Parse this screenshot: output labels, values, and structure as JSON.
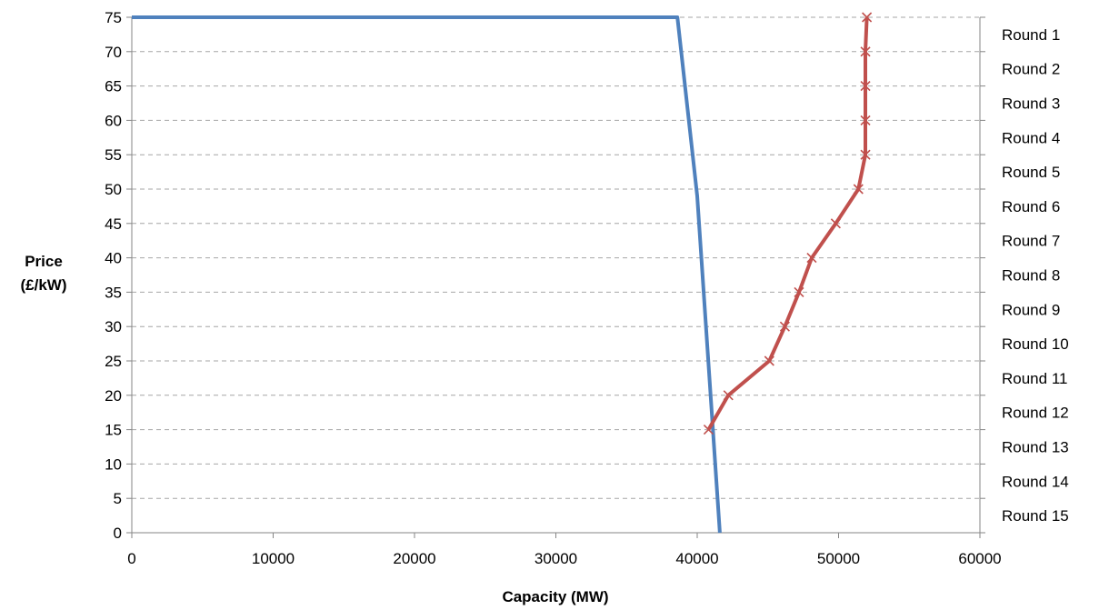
{
  "chart_data": {
    "type": "line",
    "title": "",
    "xlabel": "Capacity (MW)",
    "ylabel_lines": [
      "Price",
      "(£/kW)"
    ],
    "xlim": [
      0,
      60000
    ],
    "ylim": [
      0,
      75
    ],
    "x_ticks": [
      0,
      10000,
      20000,
      30000,
      40000,
      50000,
      60000
    ],
    "y_ticks": [
      0,
      5,
      10,
      15,
      20,
      25,
      30,
      35,
      40,
      45,
      50,
      55,
      60,
      65,
      70,
      75
    ],
    "grid": "horizontal dashed",
    "legend": "none",
    "right_labels": [
      "Round 1",
      "Round 2",
      "Round 3",
      "Round 4",
      "Round 5",
      "Round 6",
      "Round 7",
      "Round 8",
      "Round 9",
      "Round 10",
      "Round 11",
      "Round 12",
      "Round 13",
      "Round 14",
      "Round 15"
    ],
    "series": [
      {
        "color": "#4f81bd",
        "marker": "none",
        "points": [
          [
            0,
            75
          ],
          [
            38600,
            75
          ],
          [
            40000,
            49
          ],
          [
            41600,
            0
          ]
        ]
      },
      {
        "color": "#c0504d",
        "marker": "x",
        "points": [
          [
            52000,
            75
          ],
          [
            51900,
            70
          ],
          [
            51900,
            65
          ],
          [
            51900,
            60
          ],
          [
            51900,
            55
          ],
          [
            51400,
            50
          ],
          [
            49800,
            45
          ],
          [
            48100,
            40
          ],
          [
            47200,
            35
          ],
          [
            46200,
            30
          ],
          [
            45100,
            25
          ],
          [
            42200,
            20
          ],
          [
            40800,
            15
          ]
        ]
      }
    ]
  }
}
